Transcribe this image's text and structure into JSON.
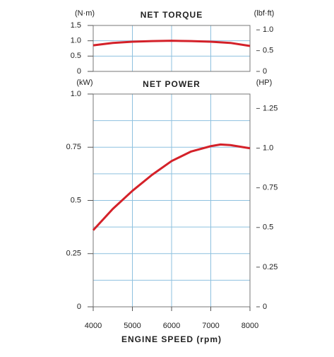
{
  "chart_data": [
    {
      "type": "line",
      "title": "NET TORQUE",
      "ylabel": "(N·m)",
      "y2label": "(lbf·ft)",
      "x": [
        4000,
        4500,
        5000,
        5500,
        6000,
        6500,
        7000,
        7500,
        8000
      ],
      "values": [
        0.85,
        0.93,
        0.97,
        0.99,
        1.0,
        0.99,
        0.97,
        0.93,
        0.83
      ],
      "color": "#d42129",
      "xlim": [
        4000,
        8000
      ],
      "xticks": [
        4000,
        5000,
        6000,
        7000,
        8000
      ],
      "show_xtick_labels": false,
      "ylim": [
        0,
        1.5
      ],
      "yticks": [
        0,
        0.5,
        {
          "value": 1,
          "label": "1.0"
        },
        1.5
      ],
      "grid_y": [
        0.5,
        1
      ],
      "y2lim": [
        0,
        1.1063
      ],
      "y2ticks": [
        0,
        0.5,
        {
          "value": 1,
          "label": "1.0"
        }
      ],
      "grid": true
    },
    {
      "type": "line",
      "title": "NET POWER",
      "ylabel": "(kW)",
      "y2label": "(HP)",
      "xlabel": "ENGINE SPEED (rpm)",
      "x": [
        4000,
        4500,
        5000,
        5500,
        6000,
        6500,
        7000,
        7250,
        7500,
        8000
      ],
      "values": [
        0.36,
        0.46,
        0.545,
        0.62,
        0.685,
        0.73,
        0.755,
        0.763,
        0.76,
        0.745
      ],
      "color": "#d42129",
      "xlim": [
        4000,
        8000
      ],
      "xticks": [
        4000,
        5000,
        6000,
        7000,
        8000
      ],
      "show_xtick_labels": true,
      "ylim": [
        0,
        1
      ],
      "yticks": [
        0,
        0.25,
        0.5,
        0.75,
        {
          "value": 1,
          "label": "1.0"
        }
      ],
      "grid_y": [
        0.125,
        0.25,
        0.375,
        0.5,
        0.625,
        0.75,
        0.875
      ],
      "y2lim": [
        0,
        1.341
      ],
      "y2ticks": [
        0,
        0.25,
        0.5,
        0.75,
        {
          "value": 1,
          "label": "1.0"
        },
        1.25
      ],
      "grid": true
    }
  ]
}
